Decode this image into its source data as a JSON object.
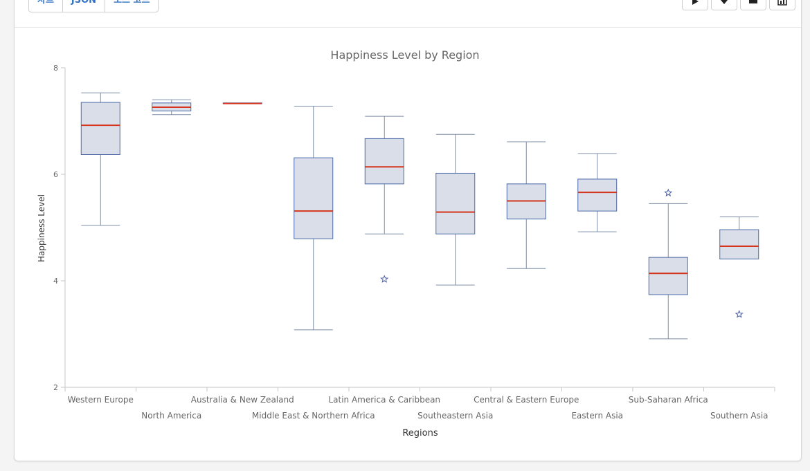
{
  "toolbar": {
    "tabs": [
      {
        "label": "차트"
      },
      {
        "label": "JSON"
      },
      {
        "label": "소스 코드"
      }
    ],
    "actions": [
      {
        "icon": "play-icon"
      },
      {
        "icon": "download-icon"
      },
      {
        "icon": "print-icon"
      },
      {
        "icon": "data-table-icon"
      }
    ]
  },
  "chart_data": {
    "type": "boxplot",
    "title": "Happiness Level by Region",
    "xlabel": "Regions",
    "ylabel": "Happiness Level",
    "ylim": [
      2,
      8
    ],
    "yticks": [
      2,
      4,
      6,
      8
    ],
    "grid": false,
    "legend": "none",
    "colors": {
      "box_fill": "#d9dee9",
      "box_stroke": "#4a6aa8",
      "whisker": "#7d8ea8",
      "median": "#d4351c",
      "outlier": "#4a5ea0",
      "axis": "#c6c6c6",
      "text": "#666666"
    },
    "categories": [
      "Western Europe",
      "North America",
      "Australia & New Zealand",
      "Middle East & Northern Africa",
      "Latin America & Caribbean",
      "Southeastern Asia",
      "Central & Eastern Europe",
      "Eastern Asia",
      "Sub-Saharan Africa",
      "Southern Asia"
    ],
    "boxes": [
      {
        "low": 5.04,
        "q1": 6.37,
        "median": 6.92,
        "q3": 7.35,
        "high": 7.53,
        "outliers": []
      },
      {
        "low": 7.12,
        "q1": 7.19,
        "median": 7.26,
        "q3": 7.34,
        "high": 7.4,
        "outliers": []
      },
      {
        "low": 7.33,
        "q1": 7.33,
        "median": 7.33,
        "q3": 7.34,
        "high": 7.34,
        "outliers": []
      },
      {
        "low": 3.08,
        "q1": 4.79,
        "median": 5.31,
        "q3": 6.31,
        "high": 7.28,
        "outliers": []
      },
      {
        "low": 4.88,
        "q1": 5.82,
        "median": 6.14,
        "q3": 6.67,
        "high": 7.09,
        "outliers": [
          4.03
        ]
      },
      {
        "low": 3.92,
        "q1": 4.88,
        "median": 5.29,
        "q3": 6.02,
        "high": 6.75,
        "outliers": []
      },
      {
        "low": 4.23,
        "q1": 5.16,
        "median": 5.5,
        "q3": 5.82,
        "high": 6.61,
        "outliers": []
      },
      {
        "low": 4.92,
        "q1": 5.31,
        "median": 5.66,
        "q3": 5.91,
        "high": 6.39,
        "outliers": []
      },
      {
        "low": 2.91,
        "q1": 3.74,
        "median": 4.14,
        "q3": 4.44,
        "high": 5.45,
        "outliers": [
          5.65
        ]
      },
      {
        "low": 4.41,
        "q1": 4.41,
        "median": 4.65,
        "q3": 4.96,
        "high": 5.2,
        "outliers": [
          3.37
        ]
      }
    ]
  }
}
